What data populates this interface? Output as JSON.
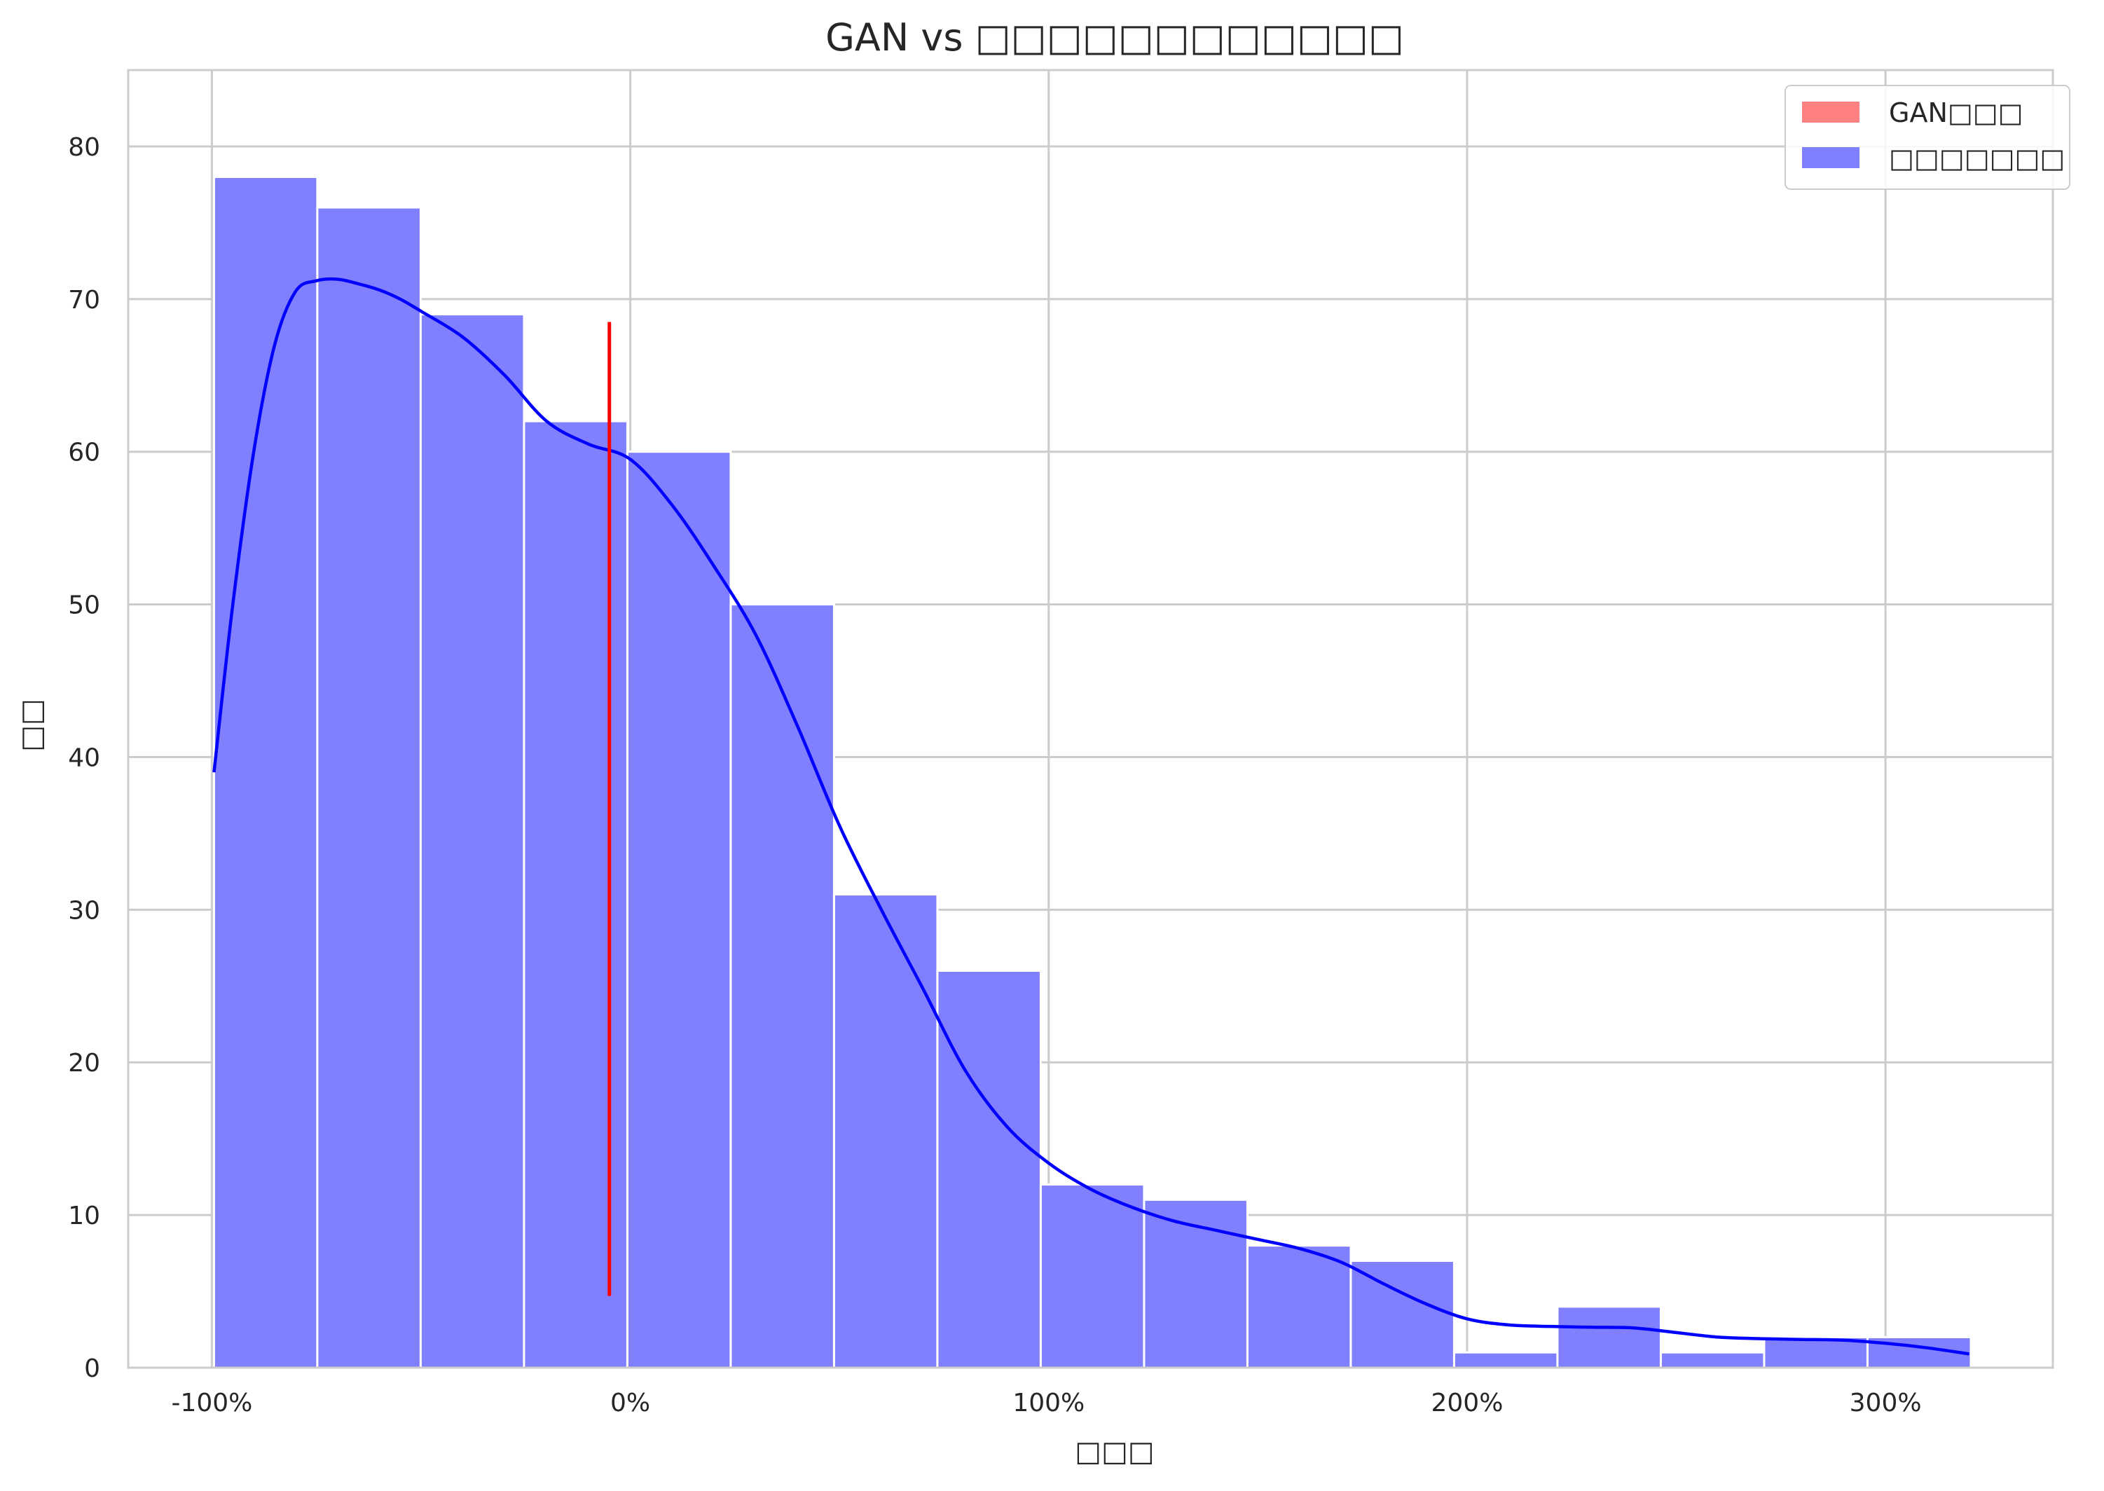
{
  "chart_data": {
    "type": "histogram",
    "title": "GAN vs □□□□□□□□□□□□",
    "xlabel": "□□□",
    "ylabel": "□□",
    "xlim": [
      -1.2,
      3.4
    ],
    "ylim": [
      0,
      85
    ],
    "x_format": "percent",
    "grid": true,
    "legend_position": "top-right",
    "x_ticks": [
      {
        "value": -1,
        "label": "-100%"
      },
      {
        "value": 0,
        "label": "0%"
      },
      {
        "value": 1,
        "label": "100%"
      },
      {
        "value": 2,
        "label": "200%"
      },
      {
        "value": 3,
        "label": "300%"
      }
    ],
    "y_ticks": [
      {
        "value": 0,
        "label": "0"
      },
      {
        "value": 10,
        "label": "10"
      },
      {
        "value": 20,
        "label": "20"
      },
      {
        "value": 30,
        "label": "30"
      },
      {
        "value": 40,
        "label": "40"
      },
      {
        "value": 50,
        "label": "50"
      },
      {
        "value": 60,
        "label": "60"
      },
      {
        "value": 70,
        "label": "70"
      },
      {
        "value": 80,
        "label": "80"
      }
    ],
    "bins": [
      {
        "x0": -0.995,
        "x1": -0.748,
        "count": 78
      },
      {
        "x0": -0.748,
        "x1": -0.501,
        "count": 76
      },
      {
        "x0": -0.501,
        "x1": -0.254,
        "count": 69
      },
      {
        "x0": -0.254,
        "x1": -0.007,
        "count": 62
      },
      {
        "x0": -0.007,
        "x1": 0.24,
        "count": 60
      },
      {
        "x0": 0.24,
        "x1": 0.487,
        "count": 50
      },
      {
        "x0": 0.487,
        "x1": 0.734,
        "count": 31
      },
      {
        "x0": 0.734,
        "x1": 0.981,
        "count": 26
      },
      {
        "x0": 0.981,
        "x1": 1.228,
        "count": 12
      },
      {
        "x0": 1.228,
        "x1": 1.475,
        "count": 11
      },
      {
        "x0": 1.475,
        "x1": 1.722,
        "count": 8
      },
      {
        "x0": 1.722,
        "x1": 1.969,
        "count": 7
      },
      {
        "x0": 1.969,
        "x1": 2.216,
        "count": 1
      },
      {
        "x0": 2.216,
        "x1": 2.463,
        "count": 4
      },
      {
        "x0": 2.463,
        "x1": 2.71,
        "count": 1
      },
      {
        "x0": 2.71,
        "x1": 2.957,
        "count": 2
      },
      {
        "x0": 2.957,
        "x1": 3.204,
        "count": 2
      }
    ],
    "kde": {
      "x": [
        -0.995,
        -0.95,
        -0.9,
        -0.85,
        -0.8,
        -0.75,
        -0.7,
        -0.65,
        -0.6,
        -0.55,
        -0.5,
        -0.4,
        -0.3,
        -0.2,
        -0.1,
        0.0,
        0.1,
        0.2,
        0.3,
        0.4,
        0.5,
        0.6,
        0.7,
        0.8,
        0.9,
        1.0,
        1.1,
        1.2,
        1.3,
        1.4,
        1.5,
        1.6,
        1.7,
        1.8,
        1.9,
        2.0,
        2.1,
        2.2,
        2.3,
        2.4,
        2.5,
        2.6,
        2.7,
        2.8,
        2.9,
        3.0,
        3.1,
        3.2
      ],
      "y": [
        39,
        50,
        60,
        67,
        70.5,
        71.2,
        71.3,
        71,
        70.6,
        70,
        69.2,
        67.5,
        65,
        62,
        60.5,
        59.5,
        56.5,
        52.5,
        48,
        42,
        35.5,
        30,
        24.8,
        19.5,
        15.8,
        13.4,
        11.7,
        10.5,
        9.6,
        9,
        8.4,
        7.8,
        6.9,
        5.5,
        4.2,
        3.2,
        2.8,
        2.7,
        2.65,
        2.6,
        2.3,
        2.0,
        1.9,
        1.85,
        1.8,
        1.6,
        1.3,
        0.9
      ]
    },
    "gan_line": {
      "x": -0.05,
      "y_min": 4.7,
      "y_max": 68.5
    },
    "series": [
      {
        "name": "GAN□□□",
        "color": "#ff8080",
        "role": "vertical-line",
        "line_color": "#ff0000"
      },
      {
        "name": "□□□□□□□",
        "color": "#8080ff",
        "role": "histogram",
        "line_color": "#0000ff"
      }
    ]
  }
}
